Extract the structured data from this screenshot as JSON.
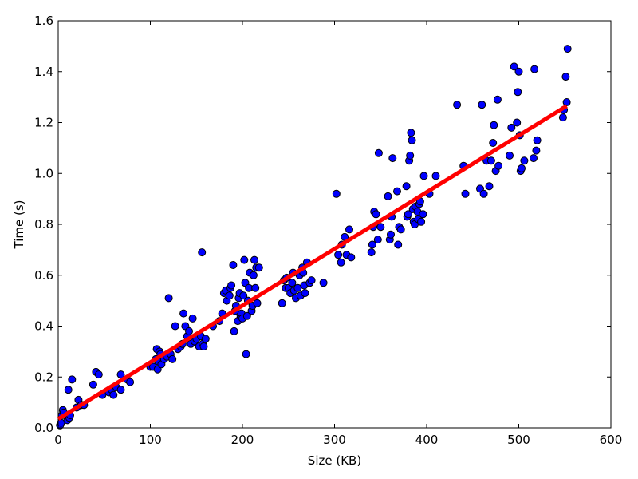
{
  "chart_data": {
    "type": "scatter",
    "title": "",
    "xlabel": "Size (KB)",
    "ylabel": "Time (s)",
    "xlim": [
      0,
      600
    ],
    "ylim": [
      0.0,
      1.6
    ],
    "xticks": [
      "0",
      "100",
      "200",
      "300",
      "400",
      "500",
      "600"
    ],
    "yticks": [
      "0.0",
      "0.2",
      "0.4",
      "0.6",
      "0.8",
      "1.0",
      "1.2",
      "1.4",
      "1.6"
    ],
    "grid": false,
    "legend": "none",
    "point_color": "#0000ff",
    "line_color": "#ff0000",
    "fit_line": {
      "x": [
        0,
        552
      ],
      "y": [
        0.035,
        1.265
      ]
    },
    "points": [
      [
        2,
        0.01
      ],
      [
        3,
        0.02
      ],
      [
        4,
        0.05
      ],
      [
        5,
        0.07
      ],
      [
        6,
        0.06
      ],
      [
        10,
        0.03
      ],
      [
        11,
        0.15
      ],
      [
        12,
        0.04
      ],
      [
        13,
        0.05
      ],
      [
        15,
        0.19
      ],
      [
        20,
        0.08
      ],
      [
        22,
        0.11
      ],
      [
        25,
        0.09
      ],
      [
        28,
        0.09
      ],
      [
        38,
        0.17
      ],
      [
        41,
        0.22
      ],
      [
        44,
        0.21
      ],
      [
        48,
        0.13
      ],
      [
        55,
        0.14
      ],
      [
        58,
        0.15
      ],
      [
        60,
        0.13
      ],
      [
        63,
        0.16
      ],
      [
        68,
        0.21
      ],
      [
        68,
        0.15
      ],
      [
        75,
        0.19
      ],
      [
        78,
        0.18
      ],
      [
        100,
        0.24
      ],
      [
        103,
        0.24
      ],
      [
        106,
        0.27
      ],
      [
        107,
        0.31
      ],
      [
        108,
        0.23
      ],
      [
        109,
        0.26
      ],
      [
        110,
        0.3
      ],
      [
        111,
        0.29
      ],
      [
        112,
        0.25
      ],
      [
        115,
        0.27
      ],
      [
        118,
        0.28
      ],
      [
        120,
        0.51
      ],
      [
        122,
        0.29
      ],
      [
        124,
        0.27
      ],
      [
        127,
        0.4
      ],
      [
        130,
        0.31
      ],
      [
        133,
        0.32
      ],
      [
        135,
        0.33
      ],
      [
        136,
        0.45
      ],
      [
        138,
        0.4
      ],
      [
        140,
        0.36
      ],
      [
        142,
        0.38
      ],
      [
        144,
        0.33
      ],
      [
        146,
        0.43
      ],
      [
        148,
        0.34
      ],
      [
        150,
        0.35
      ],
      [
        153,
        0.32
      ],
      [
        155,
        0.36
      ],
      [
        156,
        0.69
      ],
      [
        157,
        0.33
      ],
      [
        158,
        0.32
      ],
      [
        160,
        0.35
      ],
      [
        168,
        0.4
      ],
      [
        175,
        0.42
      ],
      [
        178,
        0.45
      ],
      [
        180,
        0.53
      ],
      [
        182,
        0.54
      ],
      [
        183,
        0.5
      ],
      [
        186,
        0.52
      ],
      [
        187,
        0.55
      ],
      [
        188,
        0.56
      ],
      [
        190,
        0.64
      ],
      [
        191,
        0.38
      ],
      [
        192,
        0.46
      ],
      [
        193,
        0.48
      ],
      [
        195,
        0.42
      ],
      [
        196,
        0.51
      ],
      [
        197,
        0.53
      ],
      [
        198,
        0.44
      ],
      [
        199,
        0.45
      ],
      [
        200,
        0.43
      ],
      [
        201,
        0.52
      ],
      [
        202,
        0.66
      ],
      [
        203,
        0.57
      ],
      [
        204,
        0.29
      ],
      [
        205,
        0.44
      ],
      [
        206,
        0.5
      ],
      [
        207,
        0.55
      ],
      [
        208,
        0.61
      ],
      [
        210,
        0.46
      ],
      [
        211,
        0.48
      ],
      [
        212,
        0.6
      ],
      [
        213,
        0.66
      ],
      [
        214,
        0.55
      ],
      [
        215,
        0.63
      ],
      [
        216,
        0.49
      ],
      [
        218,
        0.63
      ],
      [
        243,
        0.49
      ],
      [
        245,
        0.58
      ],
      [
        247,
        0.55
      ],
      [
        248,
        0.59
      ],
      [
        250,
        0.55
      ],
      [
        252,
        0.53
      ],
      [
        254,
        0.57
      ],
      [
        255,
        0.61
      ],
      [
        256,
        0.54
      ],
      [
        258,
        0.51
      ],
      [
        260,
        0.55
      ],
      [
        262,
        0.6
      ],
      [
        263,
        0.52
      ],
      [
        265,
        0.63
      ],
      [
        266,
        0.61
      ],
      [
        267,
        0.56
      ],
      [
        268,
        0.53
      ],
      [
        270,
        0.65
      ],
      [
        273,
        0.57
      ],
      [
        275,
        0.58
      ],
      [
        288,
        0.57
      ],
      [
        302,
        0.92
      ],
      [
        304,
        0.68
      ],
      [
        307,
        0.65
      ],
      [
        308,
        0.72
      ],
      [
        311,
        0.75
      ],
      [
        313,
        0.68
      ],
      [
        316,
        0.78
      ],
      [
        318,
        0.67
      ],
      [
        340,
        0.69
      ],
      [
        341,
        0.72
      ],
      [
        342,
        0.79
      ],
      [
        343,
        0.85
      ],
      [
        345,
        0.84
      ],
      [
        347,
        0.74
      ],
      [
        348,
        1.08
      ],
      [
        350,
        0.79
      ],
      [
        358,
        0.91
      ],
      [
        360,
        0.74
      ],
      [
        361,
        0.76
      ],
      [
        362,
        0.83
      ],
      [
        363,
        1.06
      ],
      [
        368,
        0.93
      ],
      [
        369,
        0.72
      ],
      [
        370,
        0.79
      ],
      [
        372,
        0.78
      ],
      [
        378,
        0.95
      ],
      [
        379,
        0.83
      ],
      [
        380,
        0.84
      ],
      [
        381,
        1.05
      ],
      [
        382,
        1.07
      ],
      [
        383,
        1.16
      ],
      [
        384,
        1.13
      ],
      [
        385,
        0.86
      ],
      [
        386,
        0.81
      ],
      [
        387,
        0.8
      ],
      [
        388,
        0.87
      ],
      [
        390,
        0.85
      ],
      [
        391,
        0.82
      ],
      [
        392,
        0.88
      ],
      [
        393,
        0.89
      ],
      [
        394,
        0.81
      ],
      [
        396,
        0.84
      ],
      [
        397,
        0.99
      ],
      [
        403,
        0.92
      ],
      [
        410,
        0.99
      ],
      [
        433,
        1.27
      ],
      [
        440,
        1.03
      ],
      [
        442,
        0.92
      ],
      [
        458,
        0.94
      ],
      [
        460,
        1.27
      ],
      [
        462,
        0.92
      ],
      [
        465,
        1.05
      ],
      [
        468,
        0.95
      ],
      [
        470,
        1.05
      ],
      [
        472,
        1.12
      ],
      [
        473,
        1.19
      ],
      [
        475,
        1.01
      ],
      [
        477,
        1.29
      ],
      [
        478,
        1.03
      ],
      [
        490,
        1.07
      ],
      [
        492,
        1.18
      ],
      [
        495,
        1.42
      ],
      [
        498,
        1.2
      ],
      [
        499,
        1.32
      ],
      [
        500,
        1.4
      ],
      [
        501,
        1.15
      ],
      [
        502,
        1.01
      ],
      [
        503,
        1.02
      ],
      [
        506,
        1.05
      ],
      [
        516,
        1.06
      ],
      [
        517,
        1.41
      ],
      [
        519,
        1.09
      ],
      [
        520,
        1.13
      ],
      [
        548,
        1.22
      ],
      [
        549,
        1.25
      ],
      [
        551,
        1.38
      ],
      [
        552,
        1.28
      ],
      [
        553,
        1.49
      ]
    ]
  }
}
